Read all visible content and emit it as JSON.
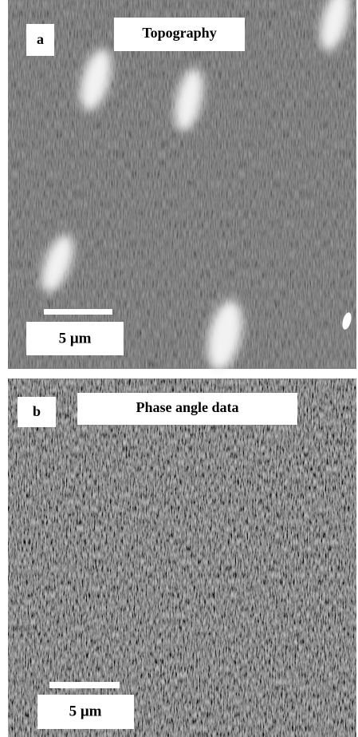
{
  "panels": [
    {
      "label": "a",
      "title": "Topography",
      "scale_bar": "5 μm"
    },
    {
      "label": "b",
      "title": "Phase angle data",
      "scale_bar": "5 μm"
    }
  ]
}
